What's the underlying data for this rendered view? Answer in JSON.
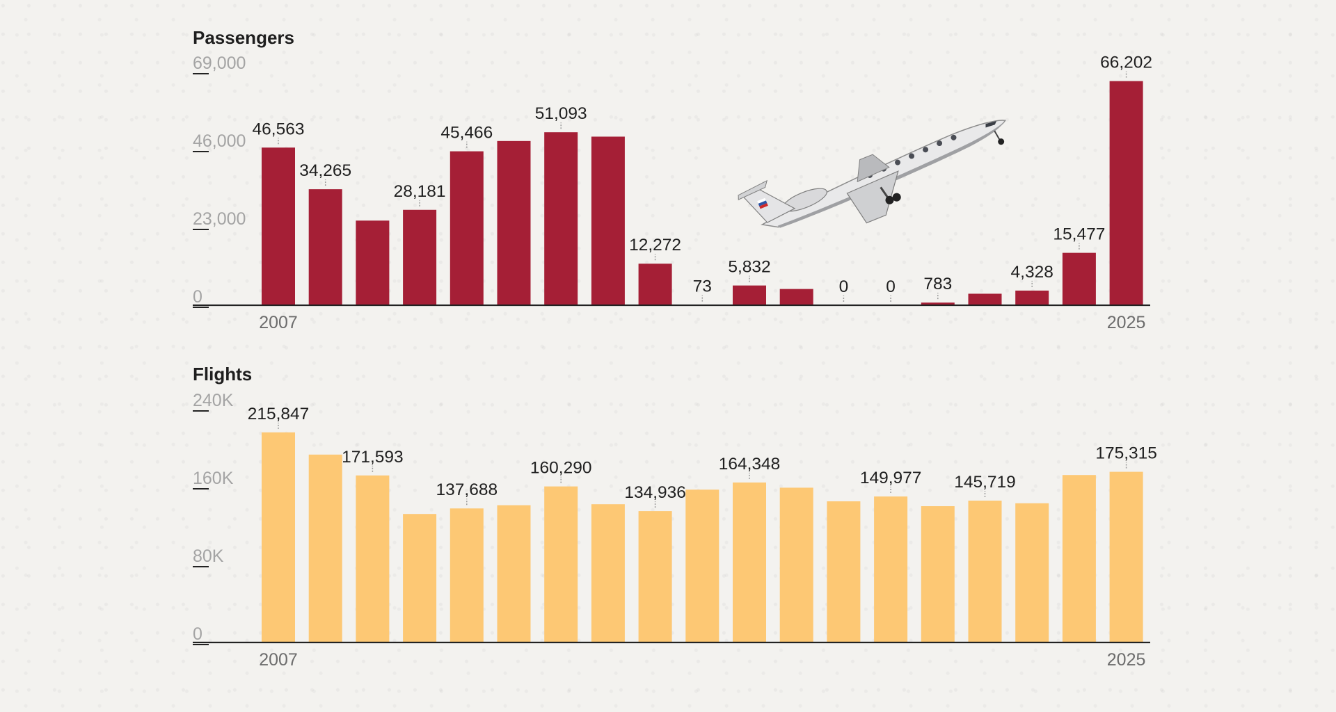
{
  "chart_data": [
    {
      "id": "passengers",
      "type": "bar",
      "title": "Passengers",
      "color": "#a51f36",
      "ylim": [
        0,
        69000
      ],
      "yticks": [
        "69,000",
        "46,000",
        "23,000",
        "0"
      ],
      "ytick_values": [
        69000,
        46000,
        23000,
        0
      ],
      "x": [
        2007,
        2008,
        2009,
        2010,
        2011,
        2012,
        2013,
        2014,
        2015,
        2016,
        2017,
        2018,
        2019,
        2020,
        2021,
        2022,
        2023,
        2024,
        2025
      ],
      "x_labels": [
        "2007",
        "2025"
      ],
      "values": [
        46563,
        34265,
        25000,
        28181,
        45466,
        48500,
        51093,
        49800,
        12272,
        73,
        5832,
        4800,
        0,
        0,
        783,
        3400,
        4328,
        15477,
        66202
      ],
      "data_labels": [
        "46,563",
        "34,265",
        "",
        "28,181",
        "45,466",
        "",
        "51,093",
        "",
        "12,272",
        "73",
        "5,832",
        "",
        "0",
        "0",
        "783",
        "",
        "4,328",
        "15,477",
        "66,202"
      ]
    },
    {
      "id": "flights",
      "type": "bar",
      "title": "Flights",
      "color": "#fdc874",
      "ylim": [
        0,
        240000
      ],
      "yticks": [
        "240K",
        "160K",
        "80K",
        "0"
      ],
      "ytick_values": [
        240000,
        160000,
        80000,
        0
      ],
      "x": [
        2007,
        2008,
        2009,
        2010,
        2011,
        2012,
        2013,
        2014,
        2015,
        2016,
        2017,
        2018,
        2019,
        2020,
        2021,
        2022,
        2023,
        2024,
        2025
      ],
      "x_labels": [
        "2007",
        "2025"
      ],
      "values": [
        215847,
        193000,
        171593,
        132000,
        137688,
        141000,
        160290,
        142000,
        134936,
        157000,
        164348,
        159000,
        145000,
        149977,
        140000,
        145719,
        143000,
        172000,
        175315
      ],
      "data_labels": [
        "215,847",
        "",
        "171,593",
        "",
        "137,688",
        "",
        "160,290",
        "",
        "134,936",
        "",
        "164,348",
        "",
        "",
        "149,977",
        "",
        "145,719",
        "",
        "",
        "175,315"
      ]
    }
  ],
  "decoration": {
    "airplane": "airplane-icon"
  }
}
